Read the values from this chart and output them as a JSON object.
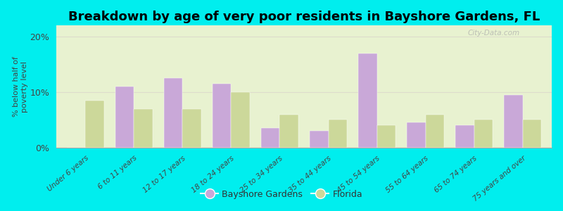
{
  "title": "Breakdown by age of very poor residents in Bayshore Gardens, FL",
  "categories": [
    "Under 6 years",
    "6 to 11 years",
    "12 to 17 years",
    "18 to 24 years",
    "25 to 34 years",
    "35 to 44 years",
    "45 to 54 years",
    "55 to 64 years",
    "65 to 74 years",
    "75 years and over"
  ],
  "bayshore_values": [
    0,
    11.0,
    12.5,
    11.5,
    3.5,
    3.0,
    17.0,
    4.5,
    4.0,
    9.5
  ],
  "florida_values": [
    8.5,
    7.0,
    7.0,
    10.0,
    6.0,
    5.0,
    4.0,
    6.0,
    5.0,
    5.0
  ],
  "bayshore_color": "#c9a8d8",
  "florida_color": "#ccd89a",
  "background_color": "#00eeee",
  "plot_bg": "#e8f2d0",
  "ylabel": "% below half of\npoverty level",
  "ylim": [
    0,
    22
  ],
  "yticks": [
    0,
    10,
    20
  ],
  "ytick_labels": [
    "0%",
    "10%",
    "20%"
  ],
  "legend_bayshore": "Bayshore Gardens",
  "legend_florida": "Florida",
  "bar_width": 0.38,
  "title_fontsize": 13,
  "watermark": "City-Data.com"
}
